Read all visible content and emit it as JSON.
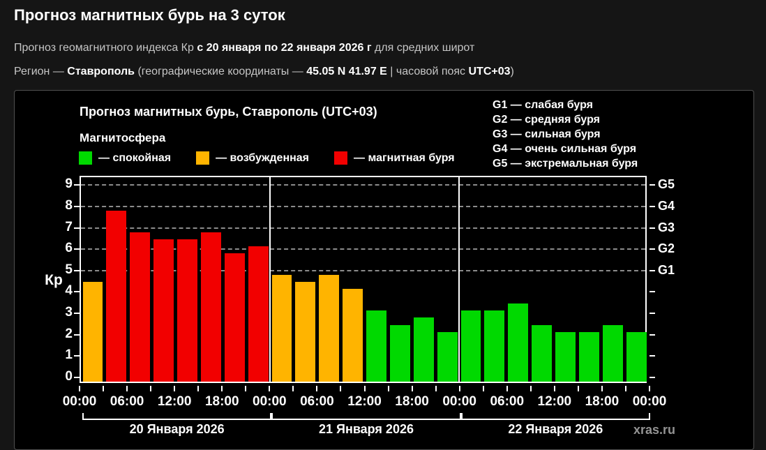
{
  "header": {
    "title": "Прогноз магнитных бурь на 3 суток",
    "line1": {
      "pre": "Прогноз геомагнитного индекса Кр",
      "bold": "с 20 января по 22 января 2026 г",
      "post": "для средних широт"
    },
    "line2": {
      "pre": "Регион —",
      "region": "Ставрополь",
      "mid": "(географические координаты —",
      "coords": "45.05 N 41.97 E",
      "sep": "|",
      "tz_label": "часовой пояс",
      "tz": "UTC+03",
      "close": ")"
    }
  },
  "chart": {
    "title": "Прогноз магнитных бурь, Ставрополь (UTC+03)",
    "legend_title": "Магнитосфера",
    "legend": [
      {
        "name": "quiet",
        "label": "— спокойная",
        "color": "#00d900"
      },
      {
        "name": "excited",
        "label": "— возбужденная",
        "color": "#ffb400"
      },
      {
        "name": "storm",
        "label": "— магнитная буря",
        "color": "#f20000"
      }
    ],
    "g_legend": [
      "G1 — слабая буря",
      "G2 — средняя буря",
      "G3 — сильная буря",
      "G4 — очень сильная буря",
      "G5 — экстремальная буря"
    ],
    "watermark": "xras.ru"
  },
  "chart_data": {
    "type": "bar",
    "title": "Прогноз магнитных бурь, Ставрополь (UTC+03)",
    "ylabel": "Кр",
    "ylim": [
      -0.33,
      9.37
    ],
    "yticks": [
      0,
      1,
      2,
      3,
      4,
      5,
      6,
      7,
      8,
      9
    ],
    "gridlines": [
      5,
      6,
      7,
      8,
      9
    ],
    "right_axis": [
      {
        "label": "G1",
        "value": 5
      },
      {
        "label": "G2",
        "value": 6
      },
      {
        "label": "G3",
        "value": 7
      },
      {
        "label": "G4",
        "value": 8
      },
      {
        "label": "G5",
        "value": 9
      }
    ],
    "hours_per_bar": 3,
    "xtick_step_hours": 3,
    "xlabel_step_hours": 6,
    "xtick_labels": [
      "00:00",
      "06:00",
      "12:00",
      "18:00",
      "00:00",
      "06:00",
      "12:00",
      "18:00",
      "00:00",
      "06:00",
      "12:00",
      "18:00",
      "00:00"
    ],
    "color_rules": {
      "storm_min_kp": 5,
      "excited_min_kp": 4
    },
    "colors": {
      "quiet": "#00d900",
      "excited": "#ffb400",
      "storm": "#f20000"
    },
    "days": [
      {
        "label": "20 Января 2026",
        "values": [
          4.33,
          7.67,
          6.67,
          6.33,
          6.33,
          6.67,
          5.67,
          6.0
        ]
      },
      {
        "label": "21 Января 2026",
        "values": [
          4.67,
          4.33,
          4.67,
          4.0,
          3.0,
          2.33,
          2.67,
          2.0
        ]
      },
      {
        "label": "22 Января 2026",
        "values": [
          3.0,
          3.0,
          3.33,
          2.33,
          2.0,
          2.0,
          2.33,
          2.0
        ]
      }
    ]
  }
}
